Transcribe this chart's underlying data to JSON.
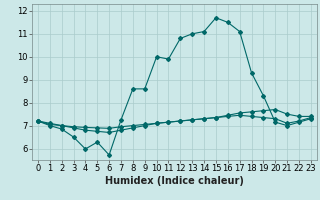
{
  "xlabel": "Humidex (Indice chaleur)",
  "bg_color": "#cce8e8",
  "grid_color": "#aacccc",
  "line_color": "#006868",
  "xlim": [
    -0.5,
    23.5
  ],
  "ylim": [
    5.5,
    12.3
  ],
  "xticks": [
    0,
    1,
    2,
    3,
    4,
    5,
    6,
    7,
    8,
    9,
    10,
    11,
    12,
    13,
    14,
    15,
    16,
    17,
    18,
    19,
    20,
    21,
    22,
    23
  ],
  "yticks": [
    6,
    7,
    8,
    9,
    10,
    11,
    12
  ],
  "line1_y": [
    7.2,
    7.0,
    6.85,
    6.5,
    5.98,
    6.28,
    5.72,
    7.25,
    8.6,
    8.6,
    10.0,
    9.9,
    10.8,
    11.0,
    11.1,
    11.7,
    11.5,
    11.1,
    9.3,
    8.3,
    7.15,
    7.0,
    7.15,
    7.3
  ],
  "line2_y": [
    7.2,
    7.1,
    7.0,
    6.9,
    6.8,
    6.75,
    6.7,
    6.8,
    6.9,
    7.0,
    7.1,
    7.15,
    7.2,
    7.25,
    7.3,
    7.35,
    7.4,
    7.45,
    7.4,
    7.35,
    7.3,
    7.1,
    7.2,
    7.35
  ],
  "line3_y": [
    7.2,
    7.05,
    7.0,
    6.95,
    6.92,
    6.9,
    6.88,
    6.95,
    7.0,
    7.05,
    7.1,
    7.15,
    7.2,
    7.25,
    7.3,
    7.35,
    7.45,
    7.55,
    7.6,
    7.65,
    7.7,
    7.5,
    7.4,
    7.4
  ],
  "xlabel_fontsize": 7,
  "tick_fontsize": 6
}
